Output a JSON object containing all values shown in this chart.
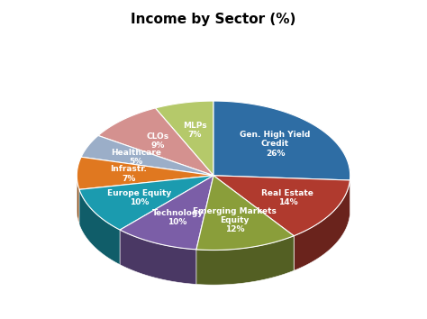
{
  "title": "Income by Sector (%)",
  "labels": [
    "Gen. High Yield\nCredit",
    "Real Estate",
    "Emerging Markets\nEquity",
    "Technology",
    "Europe Equity",
    "Infrastr.",
    "Healthcare",
    "CLOs",
    "MLPs"
  ],
  "values": [
    26,
    14,
    12,
    10,
    10,
    7,
    5,
    9,
    7
  ],
  "colors": [
    "#2E6DA4",
    "#B03A2E",
    "#8A9E3A",
    "#7B5EA7",
    "#1B9BAF",
    "#E07820",
    "#9BAEC8",
    "#D4918F",
    "#B5C96A"
  ],
  "startangle": 90,
  "background_color": "#ffffff",
  "label_color": "black",
  "inside_label_color": "white"
}
